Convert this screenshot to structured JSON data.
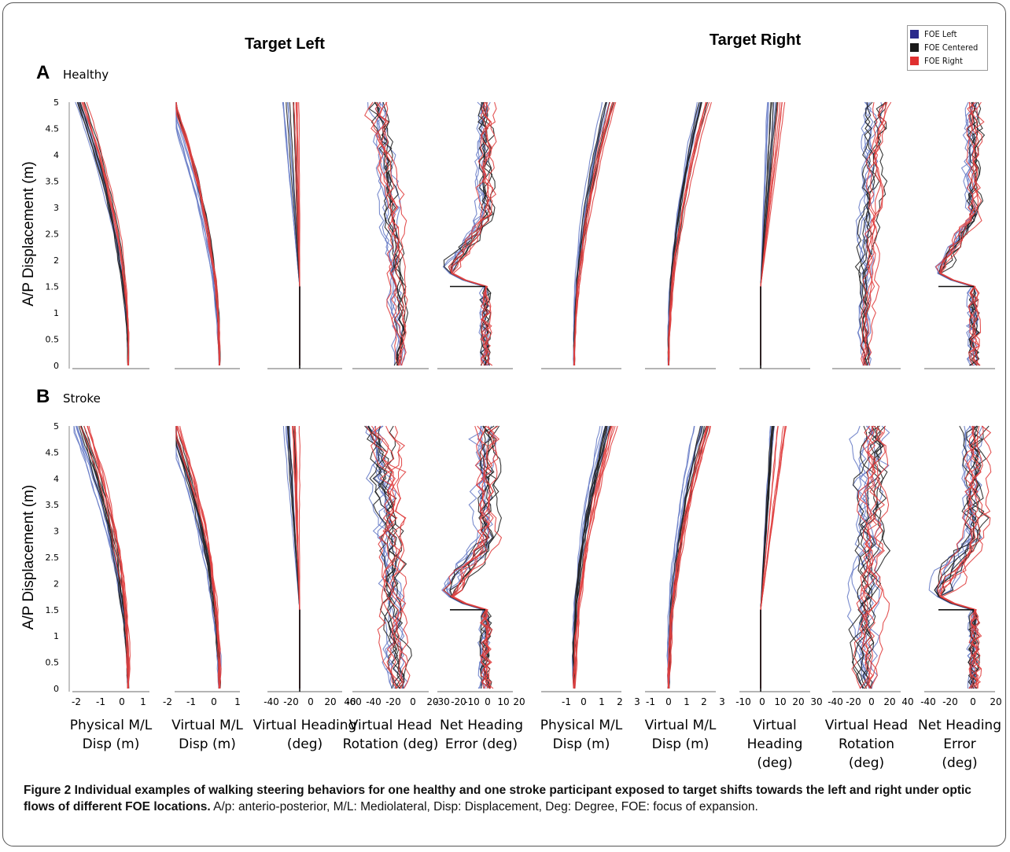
{
  "figure": {
    "group_titles": [
      "Target Left",
      "Target Right"
    ],
    "panels": [
      {
        "letter": "A",
        "label": "Healthy"
      },
      {
        "letter": "B",
        "label": "Stroke"
      }
    ],
    "ylabel": "A/P Displacement (m)",
    "yticks": [
      "5",
      "4.5",
      "4",
      "3.5",
      "3",
      "2.5",
      "2",
      "1.5",
      "1",
      "0.5",
      "0"
    ],
    "legend": [
      {
        "label": "FOE Left",
        "color": "#2a2a8c"
      },
      {
        "label": "FOE Centered",
        "color": "#1a1a1a"
      },
      {
        "label": "FOE Right",
        "color": "#e03030"
      }
    ],
    "subplots": [
      {
        "xticks": [
          "-2",
          "-1",
          "0",
          "1"
        ],
        "xlabel": [
          "Physical M/L",
          "Disp (m)"
        ]
      },
      {
        "xticks": [
          "-2",
          "-1",
          "0",
          "1"
        ],
        "xlabel": [
          "Virtual M/L",
          "Disp (m)"
        ]
      },
      {
        "xticks": [
          "-40",
          "-20",
          "0",
          "20",
          "40"
        ],
        "xlabel": [
          "Virtual Heading",
          "(deg)"
        ]
      },
      {
        "xticks": [
          "-60",
          "-40",
          "-20",
          "0",
          "20"
        ],
        "xlabel": [
          "Virtual Head",
          "Rotation (deg)"
        ]
      },
      {
        "xticks": [
          "-30",
          "-20",
          "-10",
          "0",
          "10",
          "20"
        ],
        "xlabel": [
          "Net Heading",
          "Error (deg)"
        ]
      },
      {
        "xticks": [
          "-1",
          "0",
          "1",
          "2",
          "3"
        ],
        "xlabel": [
          "Physical M/L",
          "Disp (m)"
        ]
      },
      {
        "xticks": [
          "-1",
          "0",
          "1",
          "2",
          "3"
        ],
        "xlabel": [
          "Virtual M/L",
          "Disp (m)"
        ]
      },
      {
        "xticks": [
          "-10",
          "0",
          "10",
          "20",
          "30"
        ],
        "xlabel": [
          "Virtual",
          "Heading",
          "(deg)"
        ]
      },
      {
        "xticks": [
          "-40",
          "-20",
          "0",
          "20",
          "40"
        ],
        "xlabel": [
          "Virtual Head",
          "Rotation",
          "(deg)"
        ]
      },
      {
        "xticks": [
          "-40",
          "-20",
          "0",
          "20"
        ],
        "xlabel": [
          "Net Heading",
          "Error",
          "(deg)"
        ]
      }
    ]
  },
  "caption": {
    "bold": "Figure 2 Individual examples of walking steering behaviors for one healthy and one stroke participant exposed to target shifts towards the left and right under optic flows of different FOE locations.",
    "rest": " A/p: anterio-posterior, M/L: Mediolateral, Disp: Displacement, Deg: Degree, FOE: focus of expansion."
  }
}
